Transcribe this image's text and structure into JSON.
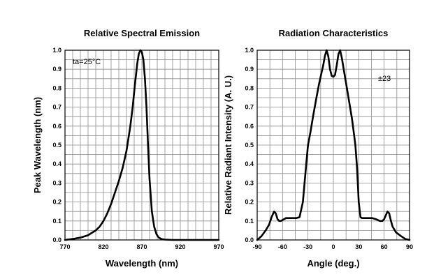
{
  "chart_data": [
    {
      "type": "line",
      "title": "Relative Spectral Emission",
      "xlabel": "Wavelength (nm)",
      "ylabel": "Peak Wavelength (nm)",
      "xlim": [
        770,
        970
      ],
      "ylim": [
        0.0,
        1.0
      ],
      "x_ticks": [
        "770",
        "820",
        "870",
        "920",
        "970"
      ],
      "y_ticks": [
        "0.0",
        "0.1",
        "0.2",
        "0.3",
        "0.4",
        "0.5",
        "0.6",
        "0.7",
        "0.8",
        "0.9",
        "1.0"
      ],
      "grid": true,
      "annotation": "ta=25°C",
      "series": [
        {
          "x": [
            770,
            780,
            790,
            800,
            810,
            815,
            820,
            825,
            830,
            835,
            840,
            845,
            850,
            855,
            858,
            861,
            864,
            866,
            868,
            870,
            872,
            874,
            876,
            878,
            880,
            883,
            886,
            889,
            892,
            896,
            900,
            910,
            930,
            950,
            970
          ],
          "y": [
            0.0,
            0.005,
            0.012,
            0.025,
            0.05,
            0.07,
            0.1,
            0.14,
            0.19,
            0.25,
            0.31,
            0.38,
            0.47,
            0.6,
            0.7,
            0.82,
            0.93,
            0.98,
            1.0,
            0.99,
            0.95,
            0.85,
            0.7,
            0.5,
            0.32,
            0.15,
            0.07,
            0.03,
            0.012,
            0.004,
            0.002,
            0.0,
            0.0,
            0.0,
            0.0
          ]
        }
      ]
    },
    {
      "type": "line",
      "title": "Radiation Characteristics",
      "xlabel": "Angle (deg.)",
      "ylabel": "Relative Radiant Intensity (A. U.)",
      "xlim": [
        -90,
        90
      ],
      "ylim": [
        0.0,
        1.0
      ],
      "x_ticks": [
        "-90",
        "-60",
        "-30",
        "0",
        "30",
        "60",
        "90"
      ],
      "y_ticks": [
        "0.0",
        "0.1",
        "0.2",
        "0.3",
        "0.4",
        "0.5",
        "0.6",
        "0.7",
        "0.8",
        "0.9",
        "1.0"
      ],
      "grid": true,
      "annotation": "±23",
      "series": [
        {
          "x": [
            -90,
            -85,
            -80,
            -76,
            -73,
            -70,
            -68,
            -66,
            -64,
            -62,
            -60,
            -56,
            -50,
            -44,
            -40,
            -36,
            -34,
            -32,
            -30,
            -27,
            -24,
            -20,
            -17,
            -14,
            -12,
            -10,
            -8,
            -6,
            -4,
            -2,
            0,
            2,
            4,
            6,
            8,
            10,
            13,
            16,
            19,
            22,
            24,
            26,
            28,
            30,
            32,
            34,
            40,
            46,
            50,
            55,
            58,
            60,
            62,
            64,
            66,
            68,
            70,
            74,
            80,
            85,
            90
          ],
          "y": [
            0.0,
            0.02,
            0.05,
            0.08,
            0.12,
            0.15,
            0.14,
            0.11,
            0.1,
            0.1,
            0.105,
            0.115,
            0.115,
            0.115,
            0.12,
            0.2,
            0.3,
            0.4,
            0.5,
            0.57,
            0.65,
            0.75,
            0.82,
            0.88,
            0.92,
            0.97,
            1.0,
            0.97,
            0.9,
            0.865,
            0.86,
            0.87,
            0.92,
            0.98,
            1.0,
            0.96,
            0.88,
            0.8,
            0.72,
            0.64,
            0.57,
            0.5,
            0.38,
            0.2,
            0.12,
            0.115,
            0.115,
            0.115,
            0.11,
            0.1,
            0.1,
            0.11,
            0.13,
            0.15,
            0.14,
            0.1,
            0.07,
            0.04,
            0.02,
            0.005,
            0.0
          ]
        }
      ]
    }
  ]
}
